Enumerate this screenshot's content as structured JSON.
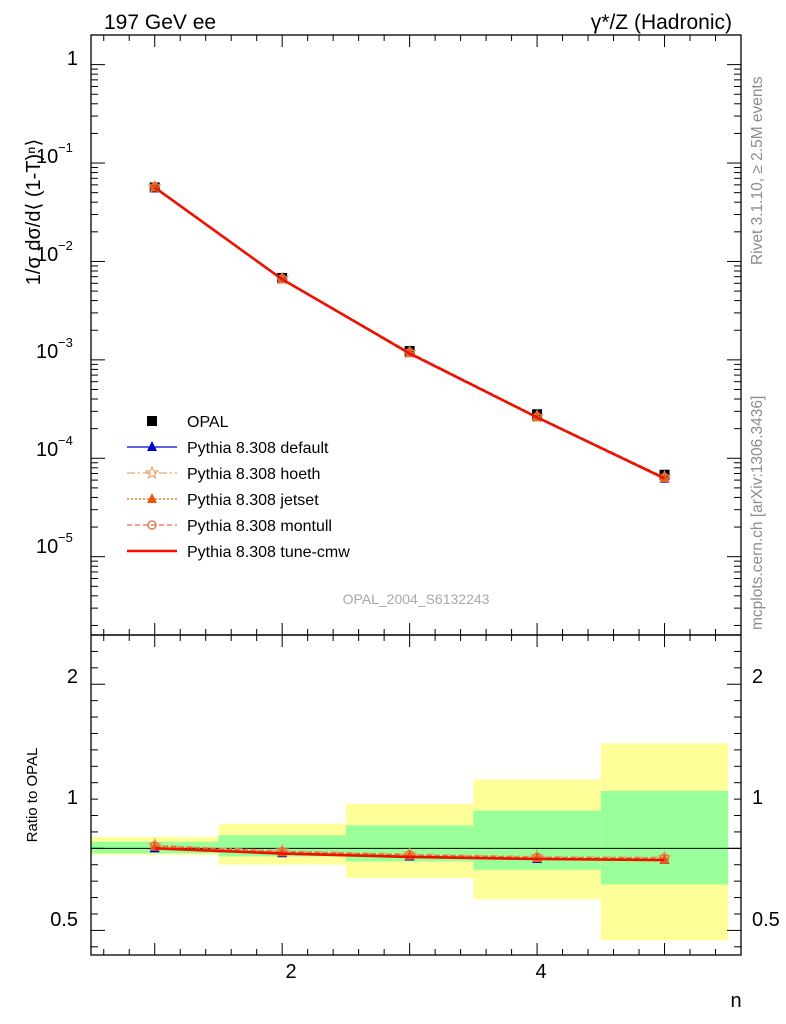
{
  "header": {
    "left": "197 GeV ee",
    "right": "γ*/Z (Hadronic)"
  },
  "side_text": {
    "rivet": "Rivet 3.1.10, ≥ 2.5M events",
    "mcplots": "mcplots.cern.ch [arXiv:1306.3436]"
  },
  "colors": {
    "opal": "#000000",
    "default": "#0000cc",
    "hoeth": "#e8a060",
    "jetset": "#e85a10",
    "montull": "#e06a40",
    "tunecmw": "#ee1100",
    "band_inner": "#99ff99",
    "band_outer": "#ffff99"
  },
  "chart_data": [
    {
      "type": "scatter",
      "ylabel": "1/σ dσ/d⟨ (1-T)ⁿ⟩",
      "yscale": "log",
      "ylim": [
        1.6e-06,
        2.0
      ],
      "xlim": [
        0.5,
        5.6
      ],
      "y_ticks": [
        {
          "base": "1",
          "exp": ""
        },
        {
          "base": "10",
          "exp": "−1"
        },
        {
          "base": "10",
          "exp": "−2"
        },
        {
          "base": "10",
          "exp": "−3"
        },
        {
          "base": "10",
          "exp": "−4"
        },
        {
          "base": "10",
          "exp": "−5"
        }
      ],
      "watermark": "OPAL_2004_S6132243",
      "x": [
        1,
        2,
        3,
        4,
        5
      ],
      "series": [
        {
          "name": "OPAL",
          "marker": "square",
          "values": [
            0.0565,
            0.0068,
            0.00123,
            0.00028,
            6.8e-05
          ]
        },
        {
          "name": "Pythia 8.308 default",
          "marker": "triangle",
          "values": [
            0.0563,
            0.00662,
            0.00117,
            0.000262,
            6.2e-05
          ]
        },
        {
          "name": "Pythia 8.308 hoeth",
          "marker": "star",
          "values": [
            0.0573,
            0.00665,
            0.00119,
            0.000265,
            6.4e-05
          ]
        },
        {
          "name": "Pythia 8.308 jetset",
          "marker": "triangle",
          "values": [
            0.0568,
            0.00664,
            0.00118,
            0.000262,
            6.3e-05
          ]
        },
        {
          "name": "Pythia 8.308 montull",
          "marker": "circle",
          "values": [
            0.0572,
            0.00666,
            0.00119,
            0.000265,
            6.4e-05
          ]
        },
        {
          "name": "Pythia 8.308 tune-cmw",
          "marker": "line",
          "values": [
            0.0565,
            0.00658,
            0.00116,
            0.00026,
            6.25e-05
          ]
        }
      ]
    },
    {
      "type": "line",
      "ylabel": "Ratio to OPAL",
      "xlabel": "n",
      "ylim": [
        0.35,
        2.3
      ],
      "xlim": [
        0.5,
        5.6
      ],
      "y_ticks": [
        "2",
        "1",
        "0.5"
      ],
      "x_ticks": [
        "2",
        "4"
      ],
      "bands": {
        "edges": [
          0.5,
          1.5,
          2.5,
          3.5,
          4.5,
          5.5
        ],
        "outer_lo": [
          0.96,
          0.9,
          0.82,
          0.69,
          0.44
        ],
        "outer_hi": [
          1.07,
          1.15,
          1.27,
          1.42,
          1.64
        ],
        "inner_lo": [
          0.97,
          0.95,
          0.92,
          0.87,
          0.78
        ],
        "inner_hi": [
          1.04,
          1.08,
          1.14,
          1.23,
          1.35
        ]
      },
      "series": [
        {
          "name": "Pythia 8.308 default",
          "values": [
            1.0,
            0.97,
            0.95,
            0.935,
            0.93
          ]
        },
        {
          "name": "Pythia 8.308 hoeth",
          "values": [
            1.02,
            0.985,
            0.965,
            0.95,
            0.945
          ]
        },
        {
          "name": "Pythia 8.308 jetset",
          "values": [
            1.01,
            0.975,
            0.955,
            0.94,
            0.93
          ]
        },
        {
          "name": "Pythia 8.308 montull",
          "values": [
            1.015,
            0.98,
            0.96,
            0.945,
            0.94
          ]
        },
        {
          "name": "Pythia 8.308 tune-cmw",
          "values": [
            1.0,
            0.968,
            0.948,
            0.935,
            0.928
          ]
        }
      ]
    }
  ]
}
